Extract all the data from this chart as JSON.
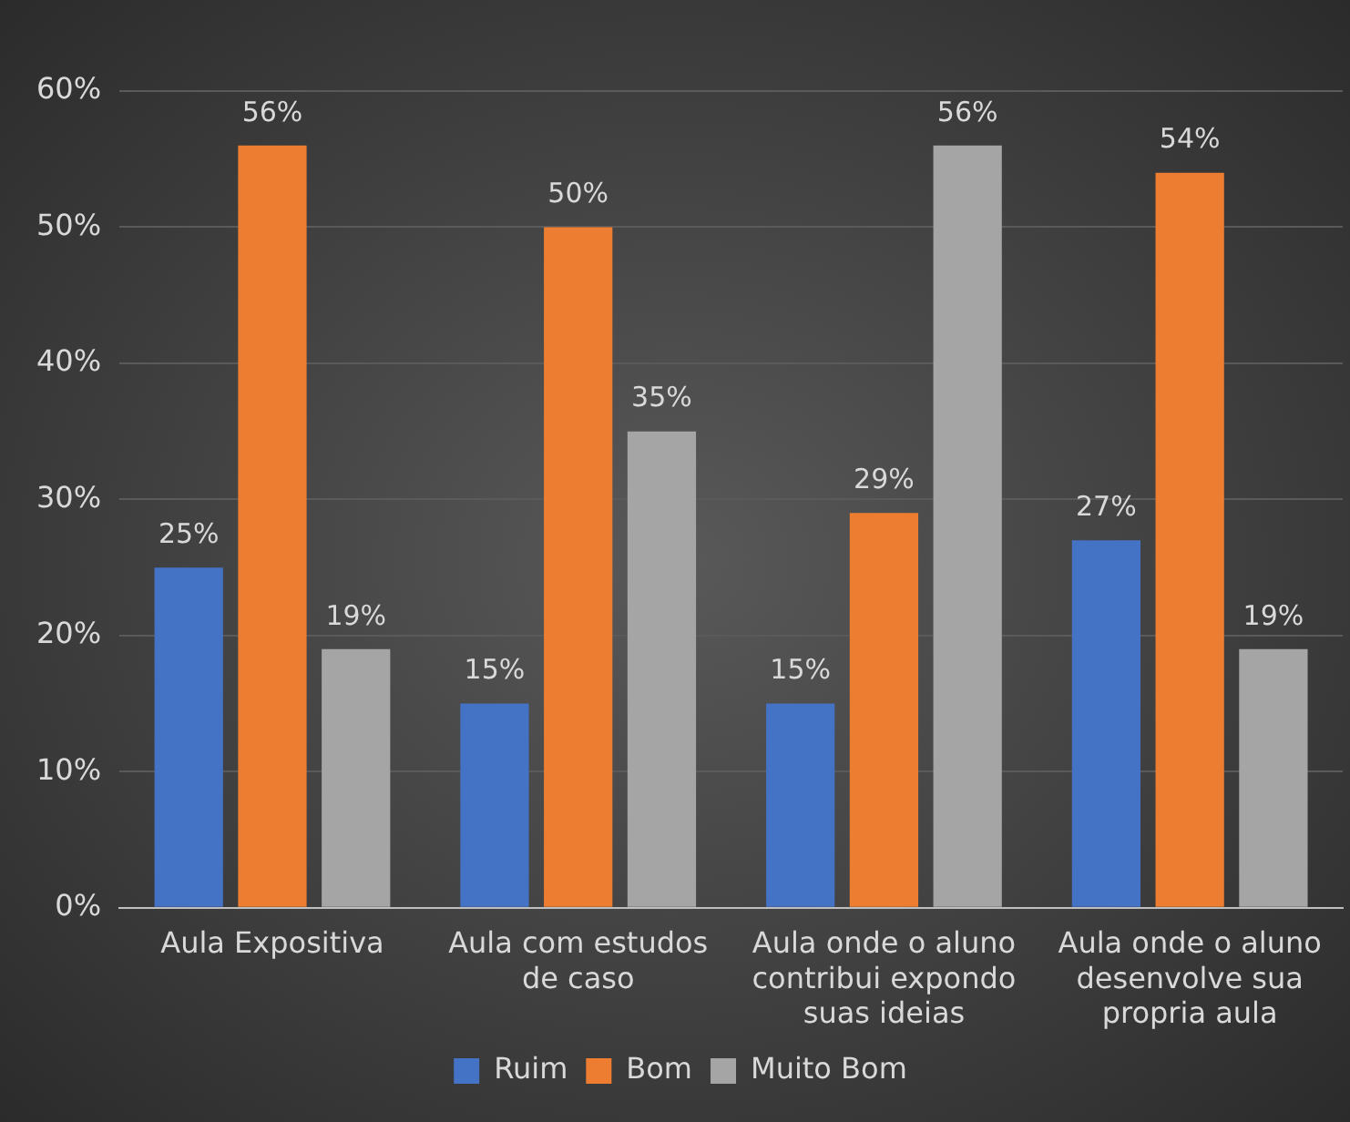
{
  "chart_data": {
    "type": "bar",
    "categories": [
      "Aula Expositiva",
      "Aula com estudos de caso",
      "Aula onde o aluno contribui expondo suas ideias",
      "Aula onde o aluno desenvolve sua propria aula"
    ],
    "series": [
      {
        "name": "Ruim",
        "color": "#4472c4",
        "values": [
          25,
          15,
          15,
          27
        ],
        "value_labels": [
          "25%",
          "15%",
          "15%",
          "27%"
        ]
      },
      {
        "name": "Bom",
        "color": "#ed7d31",
        "values": [
          56,
          50,
          29,
          54
        ],
        "value_labels": [
          "56%",
          "50%",
          "29%",
          "54%"
        ]
      },
      {
        "name": "Muito Bom",
        "color": "#a5a5a5",
        "values": [
          19,
          35,
          56,
          19
        ],
        "value_labels": [
          "19%",
          "35%",
          "56%",
          "19%"
        ]
      }
    ],
    "ylim": [
      0,
      60
    ],
    "yticks": [
      {
        "value": 0,
        "label": "0%"
      },
      {
        "value": 10,
        "label": "10%"
      },
      {
        "value": 20,
        "label": "20%"
      },
      {
        "value": 30,
        "label": "30%"
      },
      {
        "value": 40,
        "label": "40%"
      },
      {
        "value": 50,
        "label": "50%"
      },
      {
        "value": 60,
        "label": "60%"
      }
    ],
    "grid": "y",
    "legend": "bottom"
  }
}
